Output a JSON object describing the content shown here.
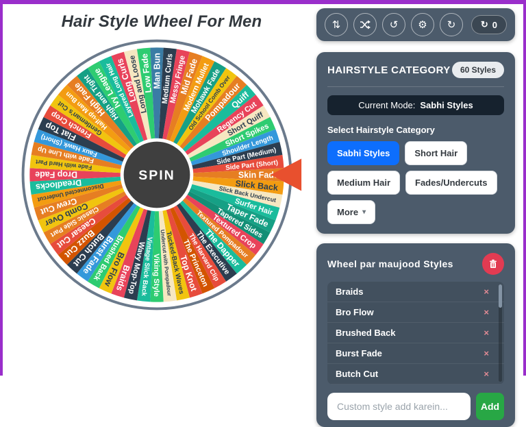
{
  "page": {
    "title": "Hair Style Wheel For Men",
    "accent_color": "#9a2ecb"
  },
  "toolbar": {
    "icons": [
      {
        "name": "sort-icon",
        "glyph": "⇅"
      },
      {
        "name": "shuffle-icon",
        "glyph": "shuffle"
      },
      {
        "name": "history-icon",
        "glyph": "↺"
      },
      {
        "name": "settings-icon",
        "glyph": "⚙"
      },
      {
        "name": "redo-icon",
        "glyph": "↻"
      }
    ],
    "counter_glyph": "↻",
    "counter_value": "0"
  },
  "category_panel": {
    "title": "HAIRSTYLE CATEGORY",
    "styles_count_badge": "60 Styles",
    "current_mode_label": "Current Mode:",
    "current_mode_value": "Sabhi Styles",
    "select_label": "Select Hairstyle Category",
    "buttons": [
      {
        "label": "Sabhi Styles",
        "active": true
      },
      {
        "label": "Short Hair",
        "active": false
      },
      {
        "label": "Medium Hair",
        "active": false
      },
      {
        "label": "Fades/Undercuts",
        "active": false
      },
      {
        "label": "More",
        "caret": "▾",
        "active": false
      }
    ]
  },
  "styles_panel": {
    "title": "Wheel par maujood Styles",
    "items": [
      "Braids",
      "Bro Flow",
      "Brushed Back",
      "Burst Fade",
      "Butch Cut"
    ],
    "remove_glyph": "×",
    "input_placeholder": "Custom style add karein...",
    "add_label": "Add"
  },
  "wheel": {
    "spin_label": "SPIN",
    "pointer_color": "#e8502e",
    "rim_color": "#ffffff",
    "center_color": "#3f3f3f",
    "segments": [
      {
        "label": "Braids",
        "color": "#e8435a",
        "text": "light"
      },
      {
        "label": "Bro Flow",
        "color": "#f1c40f",
        "text": "dark"
      },
      {
        "label": "Brushed Back",
        "color": "#2ecc71",
        "text": "light"
      },
      {
        "label": "Burst Fade",
        "color": "#3498db",
        "text": "light"
      },
      {
        "label": "Butch Cut",
        "color": "#2c3e50",
        "text": "light"
      },
      {
        "label": "Buzz Cut",
        "color": "#d35400",
        "text": "light"
      },
      {
        "label": "Caesar Cut",
        "color": "#e74c3c",
        "text": "light"
      },
      {
        "label": "Classic Side Part",
        "color": "#e67e22",
        "text": "light"
      },
      {
        "label": "Comb Over",
        "color": "#f1c40f",
        "text": "dark"
      },
      {
        "label": "Crew Cut",
        "color": "#e67e22",
        "text": "light"
      },
      {
        "label": "Disconnected Undercut",
        "color": "#f39c12",
        "text": "dark"
      },
      {
        "label": "Dreadlocks",
        "color": "#1abc9c",
        "text": "light"
      },
      {
        "label": "Drop Fade",
        "color": "#e8435a",
        "text": "light"
      },
      {
        "label": "Fade with Hard Part",
        "color": "#f1c40f",
        "text": "dark"
      },
      {
        "label": "Fade with Line Up",
        "color": "#e67e22",
        "text": "light"
      },
      {
        "label": "Faux Hawk (Short)",
        "color": "#3498db",
        "text": "light"
      },
      {
        "label": "Flat Top",
        "color": "#2c3e50",
        "text": "light"
      },
      {
        "label": "French Crop",
        "color": "#e74c3c",
        "text": "light"
      },
      {
        "label": "Gentleman's Cut",
        "color": "#f1c40f",
        "text": "dark"
      },
      {
        "label": "Half-up Man Bun",
        "color": "#f39c12",
        "text": "light"
      },
      {
        "label": "High Fade",
        "color": "#e67e22",
        "text": "light"
      },
      {
        "label": "High and Tight",
        "color": "#16a085",
        "text": "light"
      },
      {
        "label": "Ivy League",
        "color": "#2ecc71",
        "text": "light"
      },
      {
        "label": "Layered Long Hair",
        "color": "#1abc9c",
        "text": "light"
      },
      {
        "label": "Long Curls",
        "color": "#e8435a",
        "text": "light"
      },
      {
        "label": "Long and Loose",
        "color": "#f6e7c1",
        "text": "dark"
      },
      {
        "label": "Low Fade",
        "color": "#2ecc71",
        "text": "light"
      },
      {
        "label": "Man Bun",
        "color": "#3a7ca5",
        "text": "light"
      },
      {
        "label": "Medium Curls",
        "color": "#2c3e50",
        "text": "light"
      },
      {
        "label": "Messy Fringe",
        "color": "#e8435a",
        "text": "light"
      },
      {
        "label": "Mid Fade",
        "color": "#e67e22",
        "text": "light"
      },
      {
        "label": "Modern Mullet",
        "color": "#f39c12",
        "text": "light"
      },
      {
        "label": "Mohawk Fade",
        "color": "#16a085",
        "text": "light"
      },
      {
        "label": "Old School Comb Over",
        "color": "#f1c40f",
        "text": "dark"
      },
      {
        "label": "Pompadour",
        "color": "#e67e22",
        "text": "light"
      },
      {
        "label": "Quiff",
        "color": "#1abc9c",
        "text": "light"
      },
      {
        "label": "Regency Cut",
        "color": "#e8435a",
        "text": "light"
      },
      {
        "label": "Short Quiff",
        "color": "#f6e7c1",
        "text": "dark"
      },
      {
        "label": "Short Spikes",
        "color": "#2ecc71",
        "text": "light"
      },
      {
        "label": "Shoulder Length",
        "color": "#3498db",
        "text": "light"
      },
      {
        "label": "Side Part (Medium)",
        "color": "#2c3e50",
        "text": "light"
      },
      {
        "label": "Side Part (Short)",
        "color": "#e74c3c",
        "text": "light"
      },
      {
        "label": "Skin Fade",
        "color": "#e67e22",
        "text": "light"
      },
      {
        "label": "Slick Back",
        "color": "#f39c12",
        "text": "dark"
      },
      {
        "label": "Slick Back Undercut",
        "color": "#f6e7c1",
        "text": "dark"
      },
      {
        "label": "Surfer Hair",
        "color": "#1abc9c",
        "text": "light"
      },
      {
        "label": "Taper Fade",
        "color": "#16a085",
        "text": "light"
      },
      {
        "label": "Tapered Sides",
        "color": "#128f76",
        "text": "light"
      },
      {
        "label": "Textured Crop",
        "color": "#e8435a",
        "text": "light"
      },
      {
        "label": "Textured Pompadour",
        "color": "#e67e22",
        "text": "light"
      },
      {
        "label": "The Dapper",
        "color": "#1abc9c",
        "text": "light"
      },
      {
        "label": "The Executive",
        "color": "#2c3e50",
        "text": "light"
      },
      {
        "label": "The Harvard Clip",
        "color": "#e74c3c",
        "text": "light"
      },
      {
        "label": "The Princeton",
        "color": "#d35400",
        "text": "light"
      },
      {
        "label": "Top Knot",
        "color": "#e74c3c",
        "text": "light"
      },
      {
        "label": "Tucked-Back Waves",
        "color": "#f1c40f",
        "text": "dark"
      },
      {
        "label": "Undercut with Pompadour",
        "color": "#f6e7c1",
        "text": "dark"
      },
      {
        "label": "Viking Style",
        "color": "#2ecc71",
        "text": "light"
      },
      {
        "label": "Vintage Slick Back",
        "color": "#1abc9c",
        "text": "light"
      },
      {
        "label": "Wavy Mop-Top",
        "color": "#2c3e50",
        "text": "light"
      }
    ]
  }
}
